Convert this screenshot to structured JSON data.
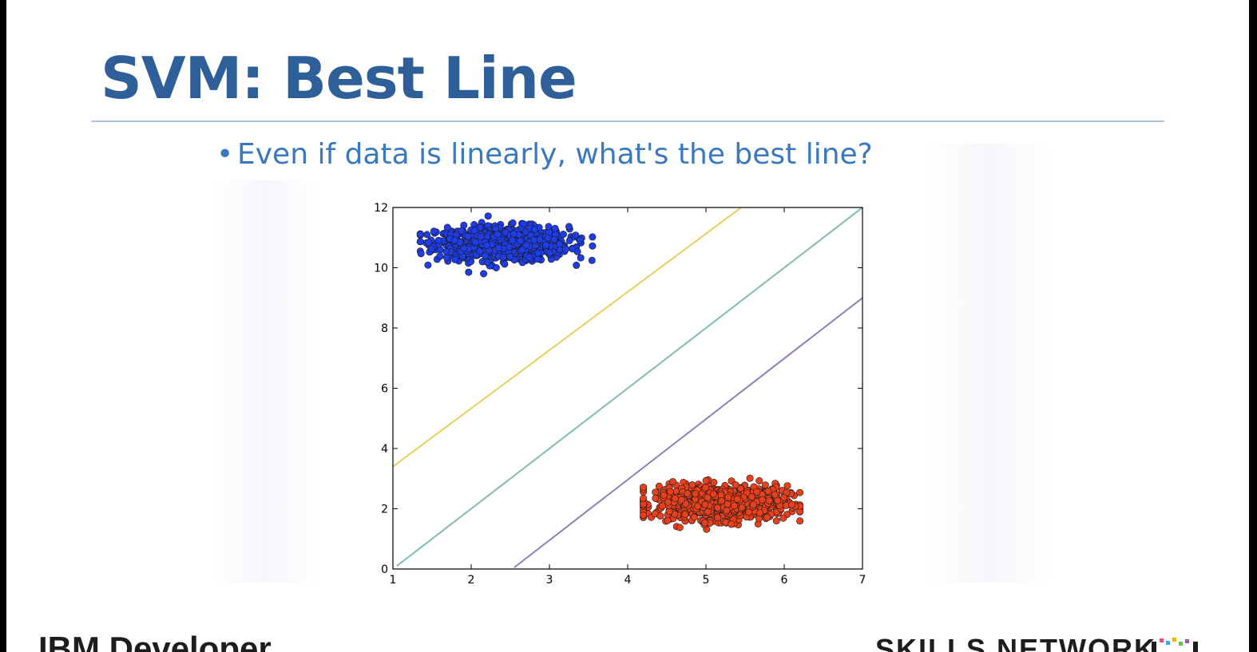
{
  "slide": {
    "title": "SVM: Best Line",
    "bullet": "Even if data is linearly, what's the best line?",
    "footer_left": "IBM Developer",
    "footer_right": "SKILLS NETWORK"
  },
  "chart_data": {
    "type": "scatter",
    "xlim": [
      1,
      7
    ],
    "ylim": [
      0,
      12
    ],
    "x_ticks": [
      1,
      2,
      3,
      4,
      5,
      6,
      7
    ],
    "y_ticks": [
      0,
      2,
      4,
      6,
      8,
      10,
      12
    ],
    "grid": false,
    "clusters": [
      {
        "color": "#1f3de6",
        "center": [
          2.4,
          10.8
        ],
        "spread": [
          0.42,
          0.28
        ],
        "x_range": [
          1.35,
          3.55
        ],
        "y_range": [
          9.8,
          11.8
        ]
      },
      {
        "color": "#e8401c",
        "center": [
          5.2,
          2.2
        ],
        "spread": [
          0.42,
          0.28
        ],
        "x_range": [
          4.2,
          6.2
        ],
        "y_range": [
          1.2,
          3.3
        ]
      }
    ],
    "lines": [
      {
        "color": "#e8d060",
        "points": [
          [
            1.0,
            3.4
          ],
          [
            5.45,
            12.0
          ]
        ]
      },
      {
        "color": "#7fc0a0",
        "points": [
          [
            1.05,
            0.1
          ],
          [
            7.0,
            12.0
          ]
        ]
      },
      {
        "color": "#8a7fbf",
        "points": [
          [
            2.55,
            0.05
          ],
          [
            7.05,
            9.1
          ]
        ]
      }
    ]
  }
}
